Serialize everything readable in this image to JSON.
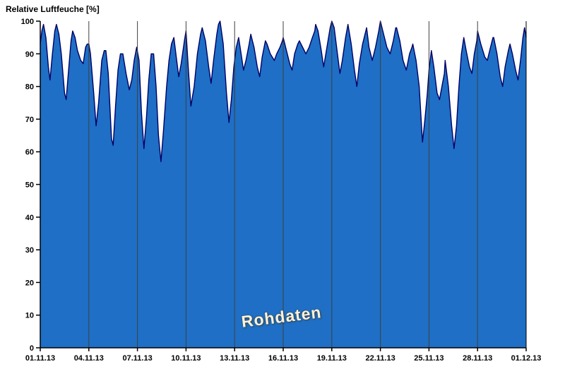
{
  "header": {
    "title": "Relative Luftfeuche [%]"
  },
  "watermark": "Rohdaten",
  "colors": {
    "area_fill": "#1e6fc5",
    "line_stroke": "#000066",
    "grid": "#3f3f3f",
    "axis": "#000000",
    "watermark_text": "#fbf2dc"
  },
  "chart_data": {
    "type": "area",
    "title": "Relative Luftfeuche [%]",
    "xlabel": "",
    "ylabel": "Relative Luftfeuche [%]",
    "ylim": [
      0,
      100
    ],
    "xlim_days": [
      0,
      30
    ],
    "grid": "vertical-only",
    "legend": "none",
    "annotation": "Rohdaten",
    "x_tick_labels": [
      "01.11.13",
      "04.11.13",
      "07.11.13",
      "10.11.13",
      "13.11.13",
      "16.11.13",
      "19.11.13",
      "22.11.13",
      "25.11.13",
      "28.11.13",
      "01.12.13"
    ],
    "x_tick_days": [
      0,
      3,
      6,
      9,
      12,
      15,
      18,
      21,
      24,
      27,
      30
    ],
    "y_ticks": [
      0,
      10,
      20,
      30,
      40,
      50,
      60,
      70,
      80,
      90,
      100
    ],
    "series": [
      {
        "name": "Relative Luftfeuche Rohdaten",
        "points": [
          [
            0,
            93
          ],
          [
            0.1,
            97
          ],
          [
            0.2,
            99
          ],
          [
            0.35,
            95
          ],
          [
            0.5,
            86
          ],
          [
            0.6,
            82
          ],
          [
            0.75,
            90
          ],
          [
            0.9,
            97
          ],
          [
            1,
            99
          ],
          [
            1.15,
            96
          ],
          [
            1.3,
            90
          ],
          [
            1.5,
            78
          ],
          [
            1.6,
            76
          ],
          [
            1.75,
            85
          ],
          [
            1.9,
            94
          ],
          [
            2,
            97
          ],
          [
            2.15,
            95
          ],
          [
            2.3,
            91
          ],
          [
            2.5,
            88
          ],
          [
            2.65,
            87
          ],
          [
            2.8,
            92
          ],
          [
            2.9,
            93
          ],
          [
            3,
            93
          ],
          [
            3.1,
            90
          ],
          [
            3.3,
            78
          ],
          [
            3.45,
            68
          ],
          [
            3.6,
            75
          ],
          [
            3.8,
            88
          ],
          [
            3.95,
            91
          ],
          [
            4.05,
            91
          ],
          [
            4.2,
            84
          ],
          [
            4.4,
            64
          ],
          [
            4.5,
            62
          ],
          [
            4.65,
            74
          ],
          [
            4.8,
            85
          ],
          [
            4.95,
            90
          ],
          [
            5.1,
            90
          ],
          [
            5.3,
            84
          ],
          [
            5.5,
            79
          ],
          [
            5.65,
            82
          ],
          [
            5.8,
            88
          ],
          [
            5.95,
            92
          ],
          [
            6.1,
            88
          ],
          [
            6.25,
            72
          ],
          [
            6.4,
            61
          ],
          [
            6.55,
            70
          ],
          [
            6.7,
            82
          ],
          [
            6.85,
            90
          ],
          [
            7,
            90
          ],
          [
            7.15,
            80
          ],
          [
            7.3,
            65
          ],
          [
            7.45,
            57
          ],
          [
            7.6,
            66
          ],
          [
            7.8,
            80
          ],
          [
            7.95,
            88
          ],
          [
            8.1,
            93
          ],
          [
            8.25,
            95
          ],
          [
            8.4,
            89
          ],
          [
            8.55,
            83
          ],
          [
            8.7,
            87
          ],
          [
            8.9,
            94
          ],
          [
            9,
            97
          ],
          [
            9.15,
            85
          ],
          [
            9.3,
            74
          ],
          [
            9.5,
            80
          ],
          [
            9.7,
            90
          ],
          [
            9.9,
            96
          ],
          [
            10,
            98
          ],
          [
            10.2,
            94
          ],
          [
            10.4,
            86
          ],
          [
            10.55,
            81
          ],
          [
            10.7,
            88
          ],
          [
            10.9,
            96
          ],
          [
            11,
            99
          ],
          [
            11.1,
            100
          ],
          [
            11.3,
            93
          ],
          [
            11.5,
            78
          ],
          [
            11.65,
            69
          ],
          [
            11.8,
            76
          ],
          [
            11.95,
            86
          ],
          [
            12.1,
            92
          ],
          [
            12.25,
            95
          ],
          [
            12.4,
            90
          ],
          [
            12.55,
            85
          ],
          [
            12.7,
            88
          ],
          [
            12.9,
            93
          ],
          [
            13,
            96
          ],
          [
            13.2,
            92
          ],
          [
            13.4,
            86
          ],
          [
            13.55,
            83
          ],
          [
            13.7,
            89
          ],
          [
            13.9,
            94
          ],
          [
            14,
            93
          ],
          [
            14.2,
            90
          ],
          [
            14.45,
            88
          ],
          [
            14.6,
            90
          ],
          [
            14.8,
            92
          ],
          [
            14.95,
            94
          ],
          [
            15,
            95
          ],
          [
            15.2,
            91
          ],
          [
            15.4,
            87
          ],
          [
            15.55,
            85
          ],
          [
            15.7,
            90
          ],
          [
            15.9,
            93
          ],
          [
            16,
            94
          ],
          [
            16.2,
            92
          ],
          [
            16.4,
            90
          ],
          [
            16.6,
            92
          ],
          [
            16.8,
            95
          ],
          [
            16.95,
            97
          ],
          [
            17,
            99
          ],
          [
            17.15,
            97
          ],
          [
            17.35,
            91
          ],
          [
            17.5,
            86
          ],
          [
            17.7,
            92
          ],
          [
            17.9,
            98
          ],
          [
            18,
            100
          ],
          [
            18.15,
            98
          ],
          [
            18.35,
            90
          ],
          [
            18.5,
            84
          ],
          [
            18.65,
            88
          ],
          [
            18.85,
            95
          ],
          [
            19,
            99
          ],
          [
            19.2,
            93
          ],
          [
            19.4,
            85
          ],
          [
            19.55,
            80
          ],
          [
            19.7,
            87
          ],
          [
            19.9,
            93
          ],
          [
            20,
            95
          ],
          [
            20.15,
            98
          ],
          [
            20.3,
            92
          ],
          [
            20.5,
            88
          ],
          [
            20.7,
            92
          ],
          [
            20.9,
            97
          ],
          [
            21,
            100
          ],
          [
            21.2,
            96
          ],
          [
            21.4,
            92
          ],
          [
            21.6,
            90
          ],
          [
            21.8,
            94
          ],
          [
            21.95,
            98
          ],
          [
            22,
            98
          ],
          [
            22.2,
            94
          ],
          [
            22.4,
            88
          ],
          [
            22.6,
            85
          ],
          [
            22.8,
            90
          ],
          [
            22.95,
            92
          ],
          [
            23,
            93
          ],
          [
            23.2,
            88
          ],
          [
            23.4,
            80
          ],
          [
            23.6,
            63
          ],
          [
            23.75,
            70
          ],
          [
            23.9,
            78
          ],
          [
            24,
            85
          ],
          [
            24.15,
            91
          ],
          [
            24.3,
            86
          ],
          [
            24.5,
            78
          ],
          [
            24.65,
            76
          ],
          [
            24.8,
            80
          ],
          [
            24.95,
            84
          ],
          [
            25,
            88
          ],
          [
            25.2,
            80
          ],
          [
            25.4,
            68
          ],
          [
            25.55,
            61
          ],
          [
            25.7,
            68
          ],
          [
            25.85,
            80
          ],
          [
            26,
            90
          ],
          [
            26.15,
            95
          ],
          [
            26.3,
            91
          ],
          [
            26.5,
            86
          ],
          [
            26.65,
            84
          ],
          [
            26.8,
            90
          ],
          [
            26.95,
            94
          ],
          [
            27,
            97
          ],
          [
            27.2,
            93
          ],
          [
            27.45,
            89
          ],
          [
            27.6,
            88
          ],
          [
            27.8,
            92
          ],
          [
            27.95,
            95
          ],
          [
            28,
            95
          ],
          [
            28.2,
            90
          ],
          [
            28.4,
            83
          ],
          [
            28.55,
            80
          ],
          [
            28.7,
            86
          ],
          [
            28.9,
            91
          ],
          [
            29,
            93
          ],
          [
            29.15,
            90
          ],
          [
            29.35,
            85
          ],
          [
            29.5,
            82
          ],
          [
            29.65,
            88
          ],
          [
            29.8,
            95
          ],
          [
            29.9,
            98
          ],
          [
            30,
            95
          ]
        ]
      }
    ]
  }
}
